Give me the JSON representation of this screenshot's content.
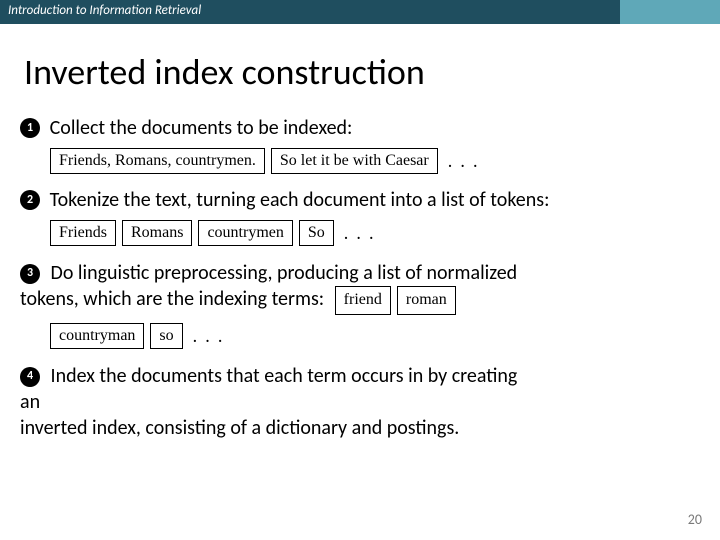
{
  "header": {
    "text": "Introduction to Information Retrieval"
  },
  "title": "Inverted index construction",
  "steps": {
    "s1": {
      "num": "1",
      "text": "Collect the documents to be indexed:",
      "docs": [
        "Friends, Romans, countrymen.",
        "So let it be with Caesar"
      ],
      "ellipsis": ". . ."
    },
    "s2": {
      "num": "2",
      "text": "Tokenize the text, turning each document into a list of tokens:",
      "tokens": [
        "Friends",
        "Romans",
        "countrymen",
        "So"
      ],
      "ellipsis": ". . ."
    },
    "s3": {
      "num": "3",
      "text_a": "Do linguistic preprocessing, producing a list of normalized",
      "text_b": "tokens, which are the indexing terms:",
      "inline_tokens": [
        "friend",
        "roman"
      ],
      "row_tokens": [
        "countryman",
        "so"
      ],
      "ellipsis": ". . ."
    },
    "s4": {
      "num": "4",
      "text_a": "Index the documents that each term occurs in by creating",
      "text_b": "an",
      "text_c": "inverted index, consisting of a dictionary and postings."
    }
  },
  "page_number": "20"
}
